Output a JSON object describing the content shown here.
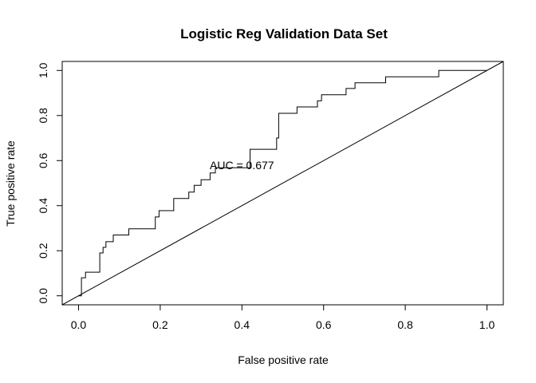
{
  "chart_data": {
    "type": "line",
    "title": "Logistic Reg Validation Data Set",
    "xlabel": "False positive rate",
    "ylabel": "True positive rate",
    "xlim": [
      -0.04,
      1.04
    ],
    "ylim": [
      -0.04,
      1.04
    ],
    "x_ticks": [
      0.0,
      0.2,
      0.4,
      0.6,
      0.8,
      1.0
    ],
    "y_ticks": [
      0.0,
      0.2,
      0.4,
      0.6,
      0.8,
      1.0
    ],
    "x_tick_labels": [
      "0.0",
      "0.2",
      "0.4",
      "0.6",
      "0.8",
      "1.0"
    ],
    "y_tick_labels": [
      "0.0",
      "0.2",
      "0.4",
      "0.6",
      "0.8",
      "1.0"
    ],
    "grid": false,
    "annotation": {
      "text": "AUC = 0.677",
      "x": 0.4,
      "y": 0.58
    },
    "series": [
      {
        "type": "step",
        "x": [
          0.0,
          0.007,
          0.007,
          0.007,
          0.017,
          0.017,
          0.052,
          0.052,
          0.06,
          0.06,
          0.067,
          0.067,
          0.085,
          0.085,
          0.123,
          0.123,
          0.188,
          0.188,
          0.197,
          0.197,
          0.233,
          0.233,
          0.27,
          0.27,
          0.283,
          0.283,
          0.3,
          0.3,
          0.322,
          0.322,
          0.335,
          0.335,
          0.42,
          0.42,
          0.485,
          0.485,
          0.49,
          0.49,
          0.535,
          0.535,
          0.585,
          0.585,
          0.595,
          0.595,
          0.655,
          0.655,
          0.677,
          0.677,
          0.752,
          0.752,
          0.882,
          0.882,
          1.0
        ],
        "y": [
          0.0,
          0.0,
          0.03,
          0.08,
          0.08,
          0.105,
          0.105,
          0.19,
          0.19,
          0.215,
          0.215,
          0.24,
          0.24,
          0.27,
          0.27,
          0.297,
          0.297,
          0.35,
          0.35,
          0.378,
          0.378,
          0.432,
          0.432,
          0.46,
          0.46,
          0.49,
          0.49,
          0.515,
          0.515,
          0.545,
          0.545,
          0.568,
          0.568,
          0.65,
          0.65,
          0.7,
          0.7,
          0.81,
          0.81,
          0.838,
          0.838,
          0.865,
          0.865,
          0.892,
          0.892,
          0.92,
          0.92,
          0.945,
          0.945,
          0.972,
          0.972,
          1.0,
          1.0
        ]
      },
      {
        "type": "reference-line",
        "x": [
          -0.04,
          1.04
        ],
        "y": [
          -0.04,
          1.04
        ]
      }
    ]
  }
}
